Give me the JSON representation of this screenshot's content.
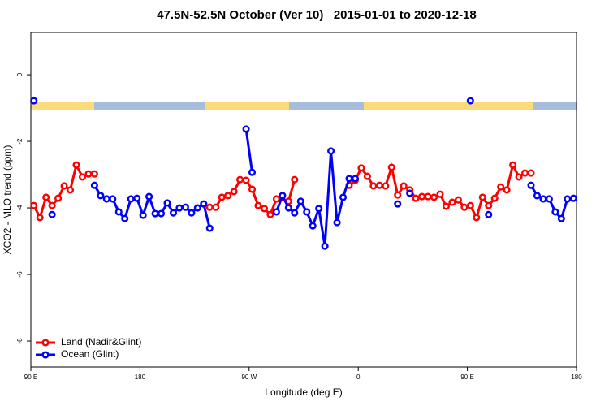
{
  "chart_data": {
    "type": "line",
    "title": "47.5N-52.5N October (Ver 10)   2015-01-01 to 2020-12-18",
    "x_label": "Longitude (deg E)",
    "y_label": "XCO2 - MLO trend (ppm)",
    "xlim": [
      90,
      540
    ],
    "xticks": [
      {
        "value": 90,
        "label": "90 E"
      },
      180,
      {
        "value": 270,
        "label": "90 W"
      },
      {
        "value": 360,
        "label": "0"
      },
      {
        "value": 450,
        "label": "90 E"
      },
      {
        "value": 540,
        "label": "180"
      }
    ],
    "ylim": [
      -8.78,
      1.27
    ],
    "yticks": [
      0,
      -2,
      -4,
      -6,
      -8
    ],
    "legend": "bottomleft",
    "series": [
      {
        "name": "Land (Nadir&Glint)",
        "color": "#ff0000",
        "x": [
          92.5,
          97.5,
          102.5,
          107.5,
          112.5,
          117.5,
          122.5,
          127.5,
          132.5,
          137.5,
          142.5,
          null,
          237.5,
          242.5,
          247.5,
          252.5,
          257.5,
          262.5,
          267.5,
          272.5,
          277.5,
          282.5,
          287.5,
          292.5,
          302.5,
          307.5,
          null,
          352.5,
          357.5,
          362.5,
          367.5,
          372.5,
          377.5,
          382.5,
          387.5,
          392.5,
          397.5,
          402.5,
          407.5,
          412.5,
          417.5,
          422.5,
          427.5,
          432.5,
          437.5,
          442.5,
          447.5,
          452.5,
          457.5,
          462.5,
          467.5,
          472.5,
          477.5,
          482.5,
          487.5,
          492.5,
          497.5,
          502.5
        ],
        "values": [
          -3.93,
          -4.29,
          -3.68,
          -3.93,
          -3.71,
          -3.34,
          -3.46,
          -2.71,
          -3.07,
          -2.98,
          -2.98,
          null,
          -3.98,
          -3.98,
          -3.68,
          -3.63,
          -3.51,
          -3.15,
          -3.17,
          -3.44,
          -3.93,
          -4.02,
          -4.2,
          -3.73,
          -3.8,
          -3.15,
          null,
          -3.32,
          -3.17,
          -2.8,
          -3.05,
          -3.34,
          -3.32,
          -3.34,
          -2.78,
          -3.61,
          -3.34,
          -3.46,
          -3.71,
          -3.66,
          -3.66,
          -3.68,
          -3.59,
          -3.95,
          -3.83,
          -3.76,
          -3.98,
          -3.93,
          -4.29,
          -3.68,
          -3.93,
          -3.71,
          -3.37,
          -3.46,
          -2.71,
          -3.07,
          -2.95,
          -2.95
        ]
      },
      {
        "name": "Ocean (Glint)",
        "color": "#0000ff",
        "x": [
          92.5,
          null,
          107.5,
          null,
          142.5,
          147.5,
          152.5,
          157.5,
          162.5,
          167.5,
          172.5,
          177.5,
          182.5,
          187.5,
          192.5,
          197.5,
          202.5,
          207.5,
          212.5,
          217.5,
          222.5,
          227.5,
          232.5,
          237.5,
          null,
          267.5,
          272.5,
          null,
          292.5,
          297.5,
          302.5,
          307.5,
          312.5,
          317.5,
          322.5,
          327.5,
          332.5,
          337.5,
          342.5,
          347.5,
          352.5,
          357.5,
          null,
          392.5,
          null,
          402.5,
          null,
          452.5,
          null,
          467.5,
          null,
          502.5,
          507.5,
          512.5,
          517.5,
          522.5,
          527.5,
          532.5,
          537.5
        ],
        "values": [
          -0.78,
          null,
          -4.2,
          null,
          -3.32,
          -3.63,
          -3.73,
          -3.73,
          -4.12,
          -4.32,
          -3.73,
          -3.71,
          -4.22,
          -3.66,
          -4.17,
          -4.17,
          -3.85,
          -4.15,
          -4.0,
          -3.98,
          -4.15,
          -4.0,
          -3.88,
          -4.61,
          null,
          -1.63,
          -2.93,
          null,
          -4.12,
          -3.63,
          -4.0,
          -4.15,
          -3.8,
          -4.12,
          -4.54,
          -4.02,
          -5.15,
          -2.29,
          -4.44,
          -3.68,
          -3.12,
          -3.12,
          null,
          -3.88,
          null,
          -3.56,
          null,
          -0.78,
          null,
          -4.2,
          null,
          -3.32,
          -3.63,
          -3.73,
          -3.73,
          -4.12,
          -4.32,
          -3.73,
          -3.71
        ]
      }
    ]
  }
}
